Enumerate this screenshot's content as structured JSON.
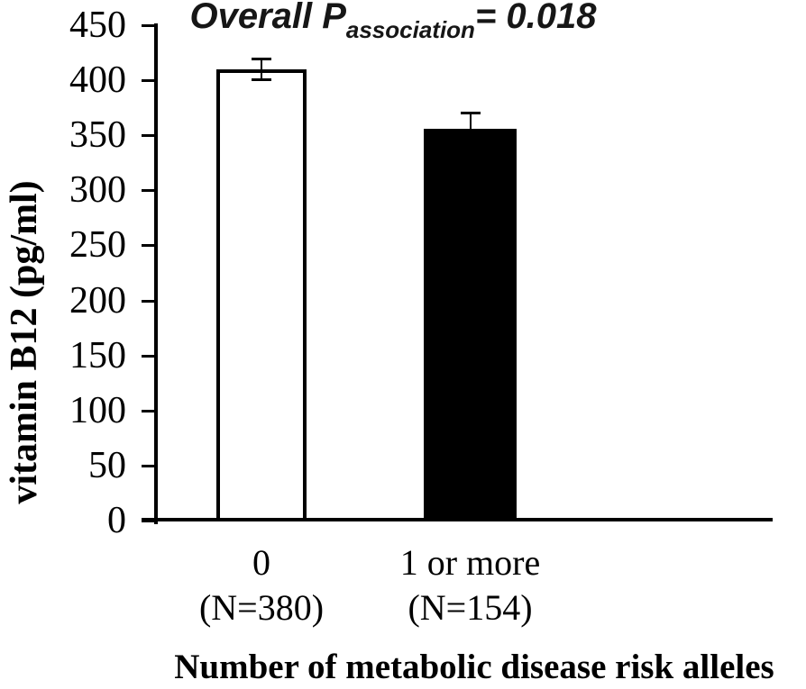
{
  "chart_data": {
    "type": "bar",
    "title": {
      "prefix": "Overall P",
      "subscript": "association",
      "suffix": "= 0.018"
    },
    "ylabel": "vitamin B12 (pg/ml)",
    "xlabel": "Number of metabolic disease risk alleles",
    "ylim": [
      0,
      450
    ],
    "ytick_step": 50,
    "yticks": [
      0,
      50,
      100,
      150,
      200,
      250,
      300,
      350,
      400,
      450
    ],
    "categories": [
      {
        "line1": "0",
        "line2": "(N=380)"
      },
      {
        "line1": "1 or more",
        "line2": "(N=154)"
      }
    ],
    "series": [
      {
        "name": "vitamin B12 (pg/ml)",
        "values": [
          410,
          356
        ],
        "errors": [
          10,
          15
        ]
      }
    ],
    "bar_styles": [
      {
        "fill": "#ffffff",
        "border": "#000000"
      },
      {
        "fill": "#000000",
        "border": "#000000"
      }
    ],
    "layout_hints": {
      "grid": "off",
      "legend": "none",
      "error_bars": "shown"
    },
    "colors": {
      "axis": "#000000",
      "text": "#000000",
      "title_text": "#161616",
      "background": "#ffffff"
    }
  }
}
